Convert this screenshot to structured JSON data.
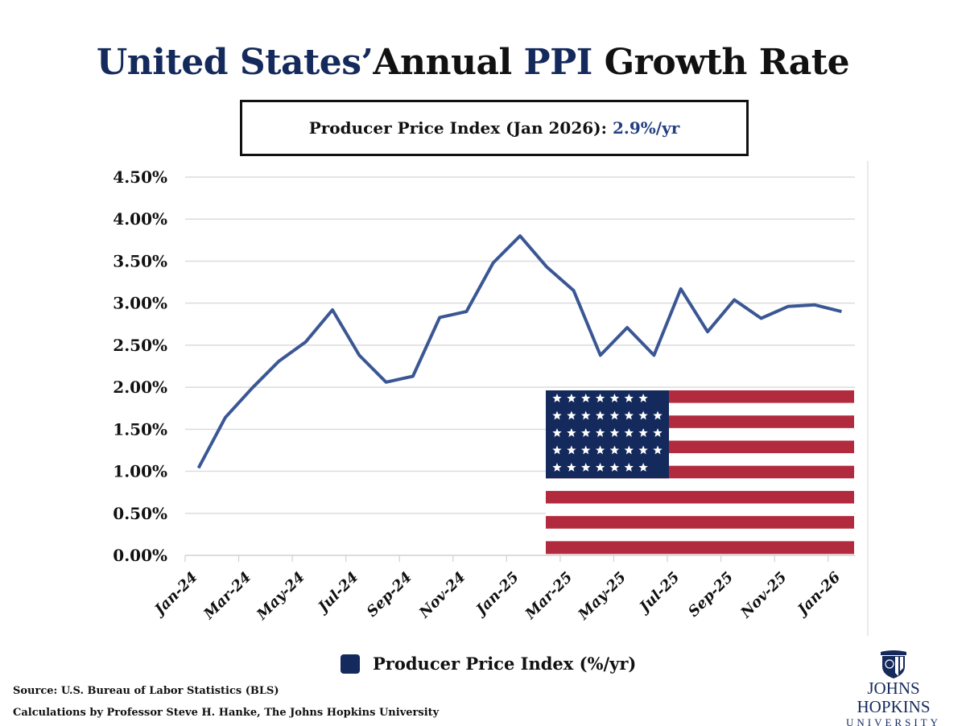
{
  "title": {
    "part1": "United States’",
    "part2": "Annual ",
    "part3": "PPI",
    "part4": " Growth Rate"
  },
  "subtitle": {
    "label": "Producer Price Index (Jan 2026): ",
    "value": "2.9%/yr"
  },
  "legend": {
    "label": "Producer Price Index (%/yr)",
    "color": "#152a5c"
  },
  "footer": {
    "source": "Source: U.S. Bureau of Labor Statistics (BLS)",
    "calc": "Calculations by Professor Steve H. Hanke, The Johns Hopkins University"
  },
  "logo": {
    "line1": "JOHNS HOPKINS",
    "line2": "UNIVERSITY"
  },
  "chart_data": {
    "type": "line",
    "title": "",
    "xlabel": "",
    "ylabel": "",
    "ylim": [
      0,
      4.5
    ],
    "y_ticks": [
      "0.00%",
      "0.50%",
      "1.00%",
      "1.50%",
      "2.00%",
      "2.50%",
      "3.00%",
      "3.50%",
      "4.00%",
      "4.50%"
    ],
    "x_tick_labels": [
      "Jan-24",
      "Mar-24",
      "May-24",
      "Jul-24",
      "Sep-24",
      "Nov-24",
      "Jan-25",
      "Mar-25",
      "May-25",
      "Jul-25",
      "Sep-25",
      "Nov-25",
      "Jan-26"
    ],
    "grid": true,
    "legend_position": "bottom",
    "line_color": "#3a5794",
    "x": [
      "Jan-24",
      "Feb-24",
      "Mar-24",
      "Apr-24",
      "May-24",
      "Jun-24",
      "Jul-24",
      "Aug-24",
      "Sep-24",
      "Oct-24",
      "Nov-24",
      "Dec-24",
      "Jan-25",
      "Feb-25",
      "Mar-25",
      "Apr-25",
      "May-25",
      "Jun-25",
      "Jul-25",
      "Aug-25",
      "Sep-25",
      "Oct-25",
      "Nov-25",
      "Dec-25",
      "Jan-26"
    ],
    "series": [
      {
        "name": "Producer Price Index (%/yr)",
        "values": [
          1.04,
          1.64,
          1.99,
          2.31,
          2.54,
          2.92,
          2.38,
          2.06,
          2.13,
          2.83,
          2.9,
          3.48,
          3.8,
          3.43,
          3.15,
          2.38,
          2.71,
          2.38,
          3.17,
          2.66,
          3.04,
          2.82,
          2.96,
          2.98,
          2.9
        ]
      }
    ]
  }
}
